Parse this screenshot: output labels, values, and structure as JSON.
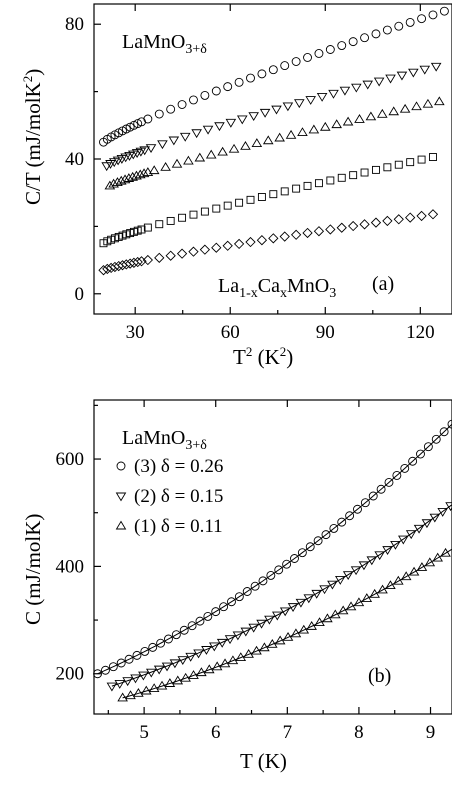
{
  "chart_data": [
    {
      "panel": "(a)",
      "type": "scatter",
      "xlabel": "T² (K²)",
      "ylabel": "C/T (mJ/molK²)",
      "xlim": [
        17,
        130
      ],
      "ylim": [
        -6,
        86
      ],
      "xticks": [
        30,
        60,
        90,
        120
      ],
      "yticks": [
        0,
        40,
        80
      ],
      "annotation_top": "LaMnO3+δ",
      "annotation_bottom": "La1-xCaxMnO3",
      "panel_label": "(a)",
      "series": [
        {
          "marker": "circle",
          "x_range": [
            20,
            128
          ],
          "y_range": [
            45,
            84
          ]
        },
        {
          "marker": "triangle-down",
          "x_range": [
            21,
            127
          ],
          "y_range": [
            38,
            68
          ]
        },
        {
          "marker": "triangle-up",
          "x_range": [
            22,
            126
          ],
          "y_range": [
            32,
            57
          ]
        },
        {
          "marker": "square",
          "x_range": [
            20,
            126
          ],
          "y_range": [
            15,
            41
          ]
        },
        {
          "marker": "diamond",
          "x_range": [
            20,
            127
          ],
          "y_range": [
            7,
            24
          ]
        }
      ]
    },
    {
      "panel": "(b)",
      "type": "scatter",
      "xlabel": "T (K)",
      "ylabel": "C (mJ/molK)",
      "xlim": [
        4.3,
        9.3
      ],
      "ylim": [
        125,
        710
      ],
      "xticks": [
        5,
        6,
        7,
        8,
        9
      ],
      "yticks": [
        200,
        400,
        600
      ],
      "legend_title": "LaMnO3+δ",
      "panel_label": "(b)",
      "legend_position": "top-left",
      "series": [
        {
          "name": "(3) δ = 0.26",
          "marker": "circle",
          "x_range": [
            4.35,
            9.3
          ],
          "y_start": 200,
          "y_end": 665
        },
        {
          "name": "(2) δ = 0.15",
          "marker": "triangle-down",
          "x_range": [
            4.55,
            9.3
          ],
          "y_start": 177,
          "y_end": 515
        },
        {
          "name": "(1) δ = 0.11",
          "marker": "triangle-up",
          "x_range": [
            4.7,
            9.3
          ],
          "y_start": 155,
          "y_end": 432
        }
      ]
    }
  ]
}
